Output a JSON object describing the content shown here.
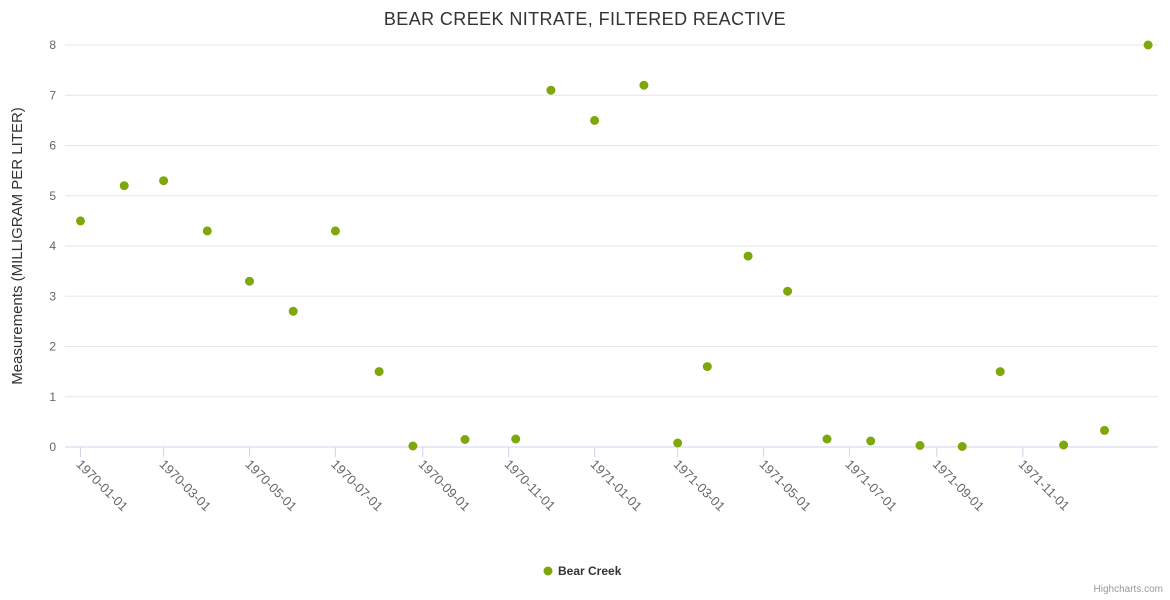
{
  "chart_data": {
    "type": "scatter",
    "title": "BEAR CREEK NITRATE, FILTERED REACTIVE",
    "xlabel": "",
    "ylabel": "Measurements (MILLIGRAM PER LITER)",
    "credits": "Highcharts.com",
    "grid": "horizontal",
    "legend_position": "bottom-center",
    "colors": {
      "point": "#7ea70c",
      "gridline": "#e6e6e6",
      "axis_line": "#ccd6eb",
      "title_text": "#333333",
      "tick_text": "#666666",
      "credits_text": "#999999"
    },
    "axes": {
      "x": {
        "type": "datetime",
        "min": "1969-12-21",
        "max": "1972-02-05",
        "label_rotation": 45,
        "ticks": [
          "1970-01-01",
          "1970-03-01",
          "1970-05-01",
          "1970-07-01",
          "1970-09-01",
          "1970-11-01",
          "1971-01-01",
          "1971-03-01",
          "1971-05-01",
          "1971-07-01",
          "1971-09-01",
          "1971-11-01"
        ]
      },
      "y": {
        "min": 0,
        "max": 8,
        "tick_interval": 1
      }
    },
    "series": [
      {
        "name": "Bear Creek",
        "color": "#7ea70c",
        "data": [
          [
            "1970-01-01",
            4.5
          ],
          [
            "1970-02-01",
            5.2
          ],
          [
            "1970-03-01",
            5.3
          ],
          [
            "1970-04-01",
            4.3
          ],
          [
            "1970-05-01",
            3.3
          ],
          [
            "1970-06-01",
            2.7
          ],
          [
            "1970-07-01",
            4.3
          ],
          [
            "1970-08-01",
            1.5
          ],
          [
            "1970-08-25",
            0.02
          ],
          [
            "1970-10-01",
            0.15
          ],
          [
            "1970-11-06",
            0.16
          ],
          [
            "1970-12-01",
            7.1
          ],
          [
            "1971-01-01",
            6.5
          ],
          [
            "1971-02-05",
            7.2
          ],
          [
            "1971-03-01",
            0.08
          ],
          [
            "1971-03-22",
            1.6
          ],
          [
            "1971-04-20",
            3.8
          ],
          [
            "1971-05-18",
            3.1
          ],
          [
            "1971-06-15",
            0.16
          ],
          [
            "1971-07-16",
            0.12
          ],
          [
            "1971-08-20",
            0.03
          ],
          [
            "1971-09-19",
            0.01
          ],
          [
            "1971-10-16",
            1.5
          ],
          [
            "1971-11-30",
            0.04
          ],
          [
            "1971-12-29",
            0.33
          ],
          [
            "1972-01-29",
            8.0
          ]
        ]
      }
    ]
  }
}
